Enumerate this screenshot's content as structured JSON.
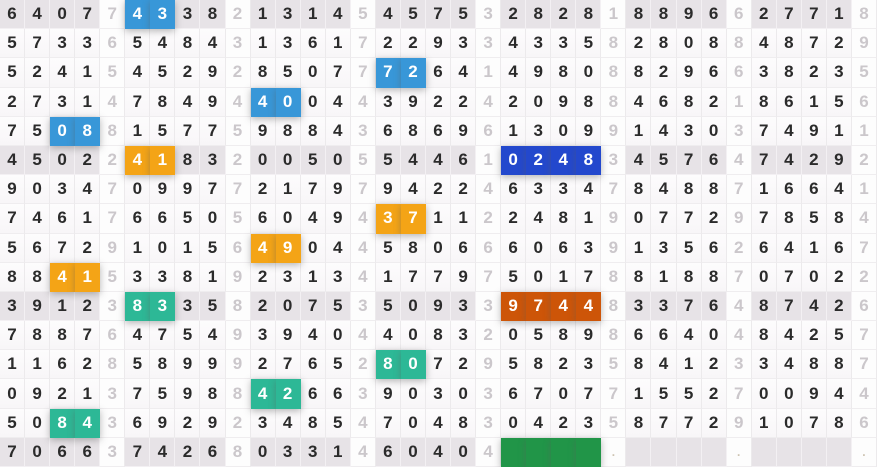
{
  "colors": {
    "blue": "#3897d8",
    "orange": "#f4a416",
    "darkblue": "#2348cd",
    "teal": "#2db896",
    "darkorange": "#cd5508",
    "green": "#219548",
    "shaded_row_bg": "#e7e3e7",
    "cell_bg": "#fcfbfc",
    "digit_dark": "#2b2b2b",
    "digit_light": "#cbc7cb"
  },
  "grid": {
    "columns": 35,
    "rows_count": 16,
    "separator_every": 5,
    "shaded_rows": [
      0,
      5,
      10,
      15
    ],
    "rows": [
      {
        "cells": [
          "6",
          "4",
          "0",
          "7",
          "7",
          "4",
          "3",
          "3",
          "8",
          "2",
          "1",
          "3",
          "1",
          "4",
          "5",
          "4",
          "5",
          "7",
          "5",
          "3",
          "2",
          "8",
          "2",
          "8",
          "1",
          "8",
          "8",
          "9",
          "6",
          "6",
          "2",
          "7",
          "7",
          "1",
          "8"
        ],
        "highlights": {
          "5": "blue",
          "6": "blue"
        }
      },
      {
        "cells": [
          "5",
          "7",
          "3",
          "3",
          "6",
          "5",
          "4",
          "8",
          "4",
          "3",
          "1",
          "3",
          "6",
          "1",
          "7",
          "2",
          "2",
          "9",
          "3",
          "3",
          "4",
          "3",
          "3",
          "5",
          "8",
          "2",
          "8",
          "0",
          "8",
          "8",
          "4",
          "8",
          "7",
          "2",
          "9"
        ],
        "highlights": {}
      },
      {
        "cells": [
          "5",
          "2",
          "4",
          "1",
          "5",
          "4",
          "5",
          "2",
          "9",
          "2",
          "8",
          "5",
          "0",
          "7",
          "7",
          "7",
          "2",
          "6",
          "4",
          "1",
          "4",
          "9",
          "8",
          "0",
          "8",
          "8",
          "2",
          "9",
          "6",
          "6",
          "3",
          "8",
          "2",
          "3",
          "5"
        ],
        "highlights": {
          "15": "blue",
          "16": "blue"
        }
      },
      {
        "cells": [
          "2",
          "7",
          "3",
          "1",
          "4",
          "7",
          "8",
          "4",
          "9",
          "4",
          "4",
          "0",
          "0",
          "4",
          "4",
          "3",
          "9",
          "2",
          "2",
          "4",
          "2",
          "0",
          "9",
          "8",
          "8",
          "4",
          "6",
          "8",
          "2",
          "1",
          "8",
          "6",
          "1",
          "5",
          "6"
        ],
        "highlights": {
          "10": "blue",
          "11": "blue"
        }
      },
      {
        "cells": [
          "7",
          "5",
          "0",
          "8",
          "8",
          "1",
          "5",
          "7",
          "7",
          "5",
          "9",
          "8",
          "8",
          "4",
          "3",
          "6",
          "8",
          "6",
          "9",
          "6",
          "1",
          "3",
          "0",
          "9",
          "9",
          "1",
          "4",
          "3",
          "0",
          "3",
          "7",
          "4",
          "9",
          "1",
          "1"
        ],
        "highlights": {
          "2": "blue",
          "3": "blue"
        }
      },
      {
        "cells": [
          "4",
          "5",
          "0",
          "2",
          "2",
          "4",
          "1",
          "8",
          "3",
          "2",
          "0",
          "0",
          "5",
          "0",
          "5",
          "5",
          "4",
          "4",
          "6",
          "1",
          "0",
          "2",
          "4",
          "8",
          "3",
          "4",
          "5",
          "7",
          "6",
          "4",
          "7",
          "4",
          "2",
          "9",
          "2"
        ],
        "highlights": {
          "5": "orange",
          "6": "orange",
          "20": "darkblue",
          "21": "darkblue",
          "22": "darkblue",
          "23": "darkblue"
        }
      },
      {
        "cells": [
          "9",
          "0",
          "3",
          "4",
          "7",
          "0",
          "9",
          "9",
          "7",
          "7",
          "2",
          "1",
          "7",
          "9",
          "7",
          "9",
          "4",
          "2",
          "2",
          "4",
          "6",
          "3",
          "3",
          "4",
          "7",
          "8",
          "4",
          "8",
          "8",
          "7",
          "1",
          "6",
          "6",
          "4",
          "1"
        ],
        "highlights": {}
      },
      {
        "cells": [
          "7",
          "4",
          "6",
          "1",
          "7",
          "6",
          "6",
          "5",
          "0",
          "5",
          "6",
          "0",
          "4",
          "9",
          "4",
          "3",
          "7",
          "1",
          "1",
          "2",
          "2",
          "4",
          "8",
          "1",
          "9",
          "0",
          "7",
          "7",
          "2",
          "9",
          "7",
          "8",
          "5",
          "8",
          "4"
        ],
        "highlights": {
          "15": "orange",
          "16": "orange"
        }
      },
      {
        "cells": [
          "5",
          "6",
          "7",
          "2",
          "9",
          "1",
          "0",
          "1",
          "5",
          "6",
          "4",
          "9",
          "0",
          "4",
          "4",
          "5",
          "8",
          "0",
          "6",
          "6",
          "6",
          "0",
          "6",
          "3",
          "9",
          "1",
          "3",
          "5",
          "6",
          "2",
          "6",
          "4",
          "1",
          "6",
          "7"
        ],
        "highlights": {
          "10": "orange",
          "11": "orange"
        }
      },
      {
        "cells": [
          "8",
          "8",
          "4",
          "1",
          "5",
          "3",
          "3",
          "8",
          "1",
          "9",
          "2",
          "3",
          "1",
          "3",
          "4",
          "1",
          "7",
          "7",
          "9",
          "7",
          "5",
          "0",
          "1",
          "7",
          "8",
          "8",
          "1",
          "8",
          "8",
          "7",
          "0",
          "7",
          "0",
          "2",
          "2"
        ],
        "highlights": {
          "2": "orange",
          "3": "orange"
        }
      },
      {
        "cells": [
          "3",
          "9",
          "1",
          "2",
          "3",
          "8",
          "3",
          "3",
          "5",
          "8",
          "2",
          "0",
          "7",
          "5",
          "3",
          "5",
          "0",
          "9",
          "3",
          "3",
          "9",
          "7",
          "4",
          "4",
          "8",
          "3",
          "3",
          "7",
          "6",
          "4",
          "8",
          "7",
          "4",
          "2",
          "6"
        ],
        "highlights": {
          "5": "teal",
          "6": "teal",
          "20": "darkorange",
          "21": "darkorange",
          "22": "darkorange",
          "23": "darkorange"
        }
      },
      {
        "cells": [
          "7",
          "8",
          "8",
          "7",
          "6",
          "4",
          "7",
          "5",
          "4",
          "9",
          "3",
          "9",
          "4",
          "0",
          "4",
          "4",
          "0",
          "8",
          "3",
          "2",
          "0",
          "5",
          "8",
          "9",
          "8",
          "6",
          "6",
          "4",
          "0",
          "4",
          "8",
          "4",
          "2",
          "5",
          "7"
        ],
        "highlights": {}
      },
      {
        "cells": [
          "1",
          "1",
          "6",
          "2",
          "8",
          "5",
          "8",
          "9",
          "9",
          "9",
          "2",
          "7",
          "6",
          "5",
          "2",
          "8",
          "0",
          "7",
          "2",
          "9",
          "5",
          "8",
          "2",
          "3",
          "5",
          "8",
          "4",
          "1",
          "2",
          "3",
          "3",
          "4",
          "8",
          "8",
          "7"
        ],
        "highlights": {
          "15": "teal",
          "16": "teal"
        }
      },
      {
        "cells": [
          "0",
          "9",
          "2",
          "1",
          "3",
          "7",
          "5",
          "9",
          "8",
          "8",
          "4",
          "2",
          "6",
          "6",
          "3",
          "9",
          "0",
          "3",
          "0",
          "3",
          "6",
          "7",
          "0",
          "7",
          "7",
          "1",
          "5",
          "5",
          "2",
          "7",
          "0",
          "0",
          "9",
          "4",
          "4"
        ],
        "highlights": {
          "10": "teal",
          "11": "teal"
        }
      },
      {
        "cells": [
          "5",
          "0",
          "8",
          "4",
          "3",
          "6",
          "9",
          "2",
          "9",
          "2",
          "3",
          "4",
          "8",
          "5",
          "4",
          "7",
          "0",
          "4",
          "8",
          "3",
          "0",
          "4",
          "2",
          "3",
          "5",
          "8",
          "7",
          "7",
          "2",
          "9",
          "1",
          "0",
          "7",
          "8",
          "6"
        ],
        "highlights": {
          "2": "teal",
          "3": "teal"
        }
      },
      {
        "cells": [
          "7",
          "0",
          "6",
          "6",
          "3",
          "7",
          "4",
          "2",
          "6",
          "8",
          "0",
          "3",
          "3",
          "1",
          "4",
          "6",
          "0",
          "4",
          "0",
          "4",
          "",
          "",
          "",
          "",
          ".",
          "",
          "",
          "",
          "",
          ".",
          "",
          "",
          "",
          "",
          "."
        ],
        "highlights": {
          "20": "green",
          "21": "green",
          "22": "green",
          "23": "green"
        }
      }
    ]
  }
}
